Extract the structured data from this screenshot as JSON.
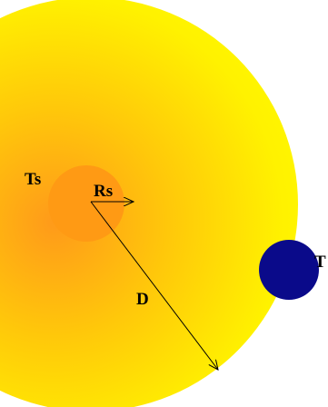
{
  "labels": {
    "star_temperature": "Ts",
    "star_radius": "Rs",
    "distance": "D",
    "planet_temperature": "T"
  }
}
